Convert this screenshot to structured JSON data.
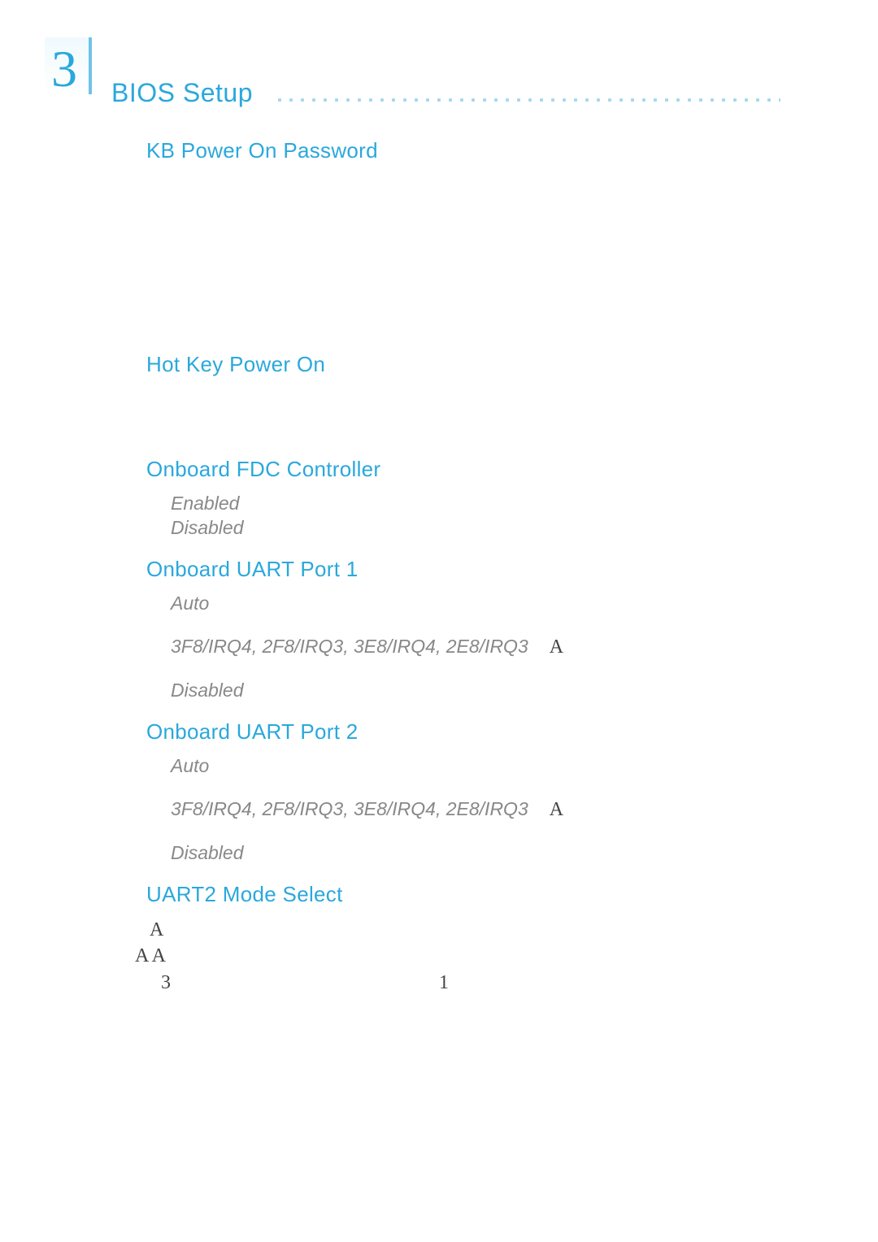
{
  "colors": {
    "accent": "#2aa8dc",
    "dot": "#5fb8e2",
    "opt_label": "#888888",
    "tail_text": "#444444",
    "background": "#ffffff"
  },
  "typography": {
    "body_fontsize": 23,
    "h2_fontsize": 26,
    "title_fontsize": 32,
    "chapter_fontsize": 64
  },
  "header": {
    "chapter_number": "3",
    "section_title": "BIOS Setup"
  },
  "sections": [
    {
      "id": "kb_power_on_password",
      "title": "KB Power On Password",
      "body": ""
    },
    {
      "id": "hot_key_power_on",
      "title": "Hot Key Power On",
      "body": ""
    },
    {
      "id": "onboard_fdc_controller",
      "title": "Onboard FDC Controller",
      "options": [
        {
          "label": "Enabled",
          "desc": ""
        },
        {
          "label": "Disabled",
          "desc": ""
        }
      ]
    },
    {
      "id": "onboard_uart_port_1",
      "title": "Onboard UART Port 1",
      "options": [
        {
          "label": "Auto",
          "desc": ""
        },
        {
          "label": "3F8/IRQ4, 2F8/IRQ3, 3E8/IRQ4, 2E8/IRQ3",
          "trailing": "A",
          "desc": ""
        },
        {
          "label": "Disabled",
          "desc": ""
        }
      ]
    },
    {
      "id": "onboard_uart_port_2",
      "title": "Onboard UART Port 2",
      "options": [
        {
          "label": "Auto",
          "desc": ""
        },
        {
          "label": "3F8/IRQ4, 2F8/IRQ3, 3E8/IRQ4, 2E8/IRQ3",
          "trailing": "A",
          "desc": ""
        },
        {
          "label": "Disabled",
          "desc": ""
        }
      ]
    },
    {
      "id": "uart2_mode_select",
      "title": "UART2 Mode Select",
      "tail_lines": {
        "l1": "A",
        "l2": "A A",
        "l3_left": "3",
        "l3_right": "1"
      }
    }
  ]
}
